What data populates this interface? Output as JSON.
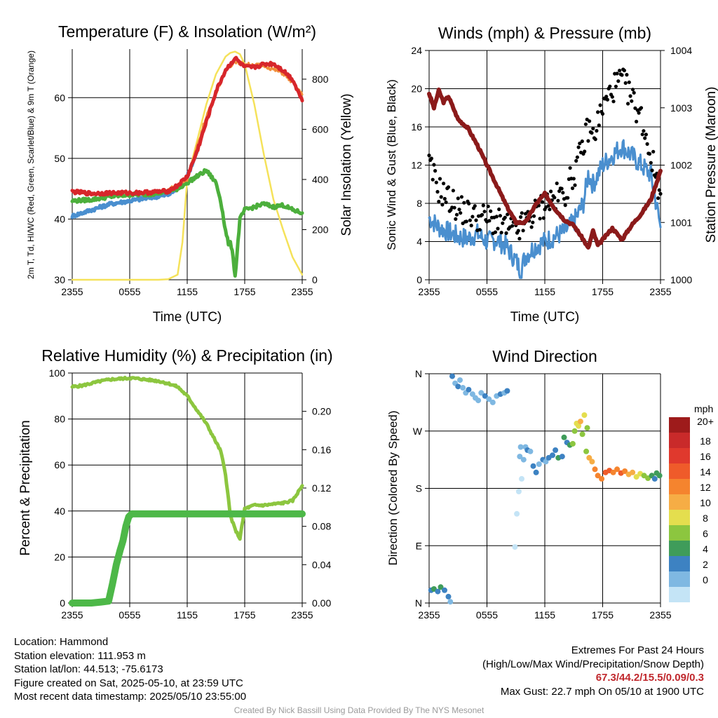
{
  "chart_data": [
    {
      "type": "line",
      "title": "Temperature (F) & Insolation (W/m²)",
      "xlabel": "Time (UTC)",
      "ylabel_left": "2m T, Td, HI/WC (Red, Green, Scarlet/Blue) & 9m T (Orange)",
      "ylabel_right": "Solar Insolation (Yellow)",
      "x_ticks": [
        "2355",
        "0555",
        "1155",
        "1755",
        "2355"
      ],
      "ylim": [
        30,
        68
      ],
      "y2lim": [
        0,
        920
      ],
      "y_ticks": [
        30,
        40,
        50,
        60
      ],
      "y2_ticks": [
        0,
        200,
        400,
        600,
        800
      ],
      "series": [
        {
          "name": "2m T",
          "color": "#d7262b",
          "x": [
            0,
            2,
            4,
            6,
            8,
            10,
            11,
            12,
            13,
            14,
            15,
            16,
            17,
            18,
            19,
            20,
            21,
            22,
            23,
            24
          ],
          "values": [
            44.5,
            44.2,
            44.3,
            44.3,
            44.4,
            44.6,
            45.5,
            47,
            51,
            56,
            61,
            64.5,
            66.5,
            65,
            65,
            65.5,
            65.6,
            64.5,
            63,
            59.5
          ]
        },
        {
          "name": "Td",
          "color": "#4caf3c",
          "x": [
            0,
            2,
            4,
            6,
            8,
            10,
            11,
            12,
            13,
            14,
            14.5,
            15,
            15.5,
            16,
            16.3,
            16.5,
            16.7,
            17,
            17.5,
            18,
            19,
            20,
            21,
            22,
            23,
            24
          ],
          "values": [
            43,
            43.2,
            43.7,
            44,
            44.1,
            44.5,
            45,
            46,
            47,
            48,
            47,
            46,
            43,
            38,
            36,
            36,
            35,
            30.5,
            40,
            41.5,
            42,
            42.5,
            42,
            42.3,
            41.5,
            41
          ]
        },
        {
          "name": "HI/WC",
          "color": "#4a8fcf",
          "x": [
            0,
            2,
            4,
            6,
            8,
            10,
            11,
            12,
            13
          ],
          "values": [
            40.5,
            41.5,
            42.5,
            43,
            43.5,
            44,
            45,
            47,
            51
          ]
        },
        {
          "name": "9m T",
          "color": "#f18e3a",
          "x": [
            10,
            12,
            14,
            16,
            17,
            18,
            20,
            22,
            23,
            24
          ],
          "values": [
            44.8,
            46.5,
            57,
            64.5,
            66,
            65.5,
            65.3,
            64,
            62.5,
            60.5
          ]
        },
        {
          "name": "Solar Insolation",
          "color": "#f5e25a",
          "x": [
            0,
            2,
            4,
            6,
            8,
            9,
            10,
            11,
            11.5,
            12,
            13,
            14,
            15,
            16,
            16.5,
            17,
            17.5,
            18,
            19,
            20,
            21,
            22,
            23,
            24
          ],
          "values": [
            0,
            0,
            0,
            0,
            0,
            0,
            2,
            20,
            150,
            400,
            550,
            700,
            820,
            890,
            905,
            910,
            900,
            860,
            700,
            500,
            320,
            200,
            90,
            20
          ]
        }
      ]
    },
    {
      "type": "line",
      "title": "Winds (mph) & Pressure (mb)",
      "xlabel": "Time (UTC)",
      "ylabel_left": "Sonic Wind & Gust (Blue, Black)",
      "ylabel_right": "Station Pressure (Maroon)",
      "x_ticks": [
        "2355",
        "0555",
        "1155",
        "1755",
        "2355"
      ],
      "ylim": [
        0,
        24
      ],
      "y2lim": [
        1000,
        1004
      ],
      "y_ticks": [
        0,
        4,
        8,
        12,
        16,
        20,
        24
      ],
      "y2_ticks": [
        1000,
        1001,
        1002,
        1003,
        1004
      ],
      "series": [
        {
          "name": "Sonic Wind",
          "color": "#4a8fcf",
          "x": [
            0,
            1,
            2,
            3,
            4,
            5,
            6,
            7,
            8,
            9,
            9.5,
            10,
            11,
            12,
            13,
            14,
            15,
            16,
            16.5,
            17,
            18,
            19,
            20,
            21,
            22,
            23,
            24
          ],
          "values": [
            6.5,
            5.5,
            5,
            4.5,
            4.3,
            4.8,
            4,
            4.2,
            3.5,
            2,
            1,
            2.5,
            3.5,
            4,
            4.5,
            5,
            6,
            8,
            11,
            10,
            12,
            13,
            14,
            13,
            12,
            11,
            5.5
          ]
        },
        {
          "name": "Gust",
          "color": "#000000",
          "x": [
            0,
            1,
            2,
            3,
            4,
            5,
            6,
            7,
            8,
            9,
            10,
            11,
            12,
            13,
            14,
            15,
            16,
            16.5,
            17,
            18,
            19,
            20,
            21,
            22,
            23,
            24
          ],
          "values": [
            12,
            9.5,
            8.5,
            7.5,
            7,
            6.5,
            6.5,
            6,
            5.5,
            5,
            6,
            7,
            8,
            8.5,
            9,
            11,
            14,
            16,
            15,
            18,
            20,
            21,
            19,
            17,
            13,
            9
          ]
        },
        {
          "name": "Station Pressure",
          "color": "#8b1a1a",
          "x": [
            0,
            0.5,
            1,
            1.5,
            2,
            3,
            4,
            5,
            6,
            7,
            8,
            9,
            10,
            11,
            12,
            13,
            14,
            15,
            16,
            16.5,
            17,
            17.5,
            18,
            19,
            20,
            21,
            22,
            23,
            24
          ],
          "values": [
            1003.25,
            1003.0,
            1003.3,
            1003.1,
            1003.2,
            1002.8,
            1002.65,
            1002.35,
            1002.0,
            1001.65,
            1001.3,
            1001.0,
            1001.0,
            1001.3,
            1001.5,
            1001.25,
            1001.05,
            1000.95,
            1000.7,
            1000.55,
            1000.85,
            1000.6,
            1000.7,
            1000.9,
            1000.7,
            1000.95,
            1001.15,
            1001.4,
            1001.9
          ]
        }
      ]
    },
    {
      "type": "line",
      "title": "Relative Humidity (%) & Precipitation (in)",
      "ylabel_left": "Percent & Precipitation",
      "x_ticks": [
        "2355",
        "0555",
        "1155",
        "1755",
        "2355"
      ],
      "ylim": [
        0,
        100
      ],
      "y2lim": [
        0,
        0.24
      ],
      "y_ticks": [
        0,
        20,
        40,
        60,
        80,
        100
      ],
      "y2_ticks": [
        "0.00",
        "0.04",
        "0.08",
        "0.12",
        "0.16",
        "0.20"
      ],
      "series": [
        {
          "name": "Relative Humidity",
          "color": "#8cc63f",
          "x": [
            0,
            1,
            2,
            3,
            4,
            5,
            6,
            7,
            8,
            9,
            10,
            11,
            12,
            13,
            14,
            15,
            15.5,
            16,
            16.5,
            17,
            17.5,
            18,
            19,
            20,
            21,
            22,
            23,
            24
          ],
          "values": [
            94,
            94.5,
            95.5,
            96.5,
            97.2,
            97.5,
            97.8,
            97.5,
            97,
            96.5,
            95.5,
            94,
            90,
            84,
            78,
            70,
            66,
            56,
            38,
            32,
            28,
            41,
            42.5,
            42.5,
            43,
            43.5,
            44.5,
            51
          ]
        },
        {
          "name": "Precipitation",
          "color": "#4db848",
          "x": [
            0,
            1,
            2,
            3,
            3.8,
            4.2,
            4.6,
            5,
            5.3,
            5.6,
            5.9,
            6.2,
            7,
            8,
            24
          ],
          "values": [
            0,
            0,
            0,
            0.001,
            0.002,
            0.02,
            0.04,
            0.055,
            0.065,
            0.08,
            0.09,
            0.093,
            0.093,
            0.093,
            0.093
          ]
        }
      ]
    },
    {
      "type": "scatter",
      "title": "Wind Direction",
      "ylabel": "Direction (Colored By Speed)",
      "x_ticks": [
        "2355",
        "0555",
        "1155",
        "1755",
        "2355"
      ],
      "y_ticks": [
        "N",
        "E",
        "S",
        "W",
        "N"
      ],
      "ylim": [
        0,
        360
      ],
      "colorbar_title": "mph",
      "colorbar_labels": [
        "20+",
        "18",
        "16",
        "14",
        "12",
        "10",
        "8",
        "6",
        "4",
        "2",
        "0"
      ],
      "colorbar_colors": [
        "#9e1b1b",
        "#c92a2a",
        "#e0392d",
        "#ef5b2a",
        "#f5842e",
        "#f6ad45",
        "#e4de4e",
        "#8cc63f",
        "#3f9c5a",
        "#3d82c2",
        "#7fb8e2",
        "#c4e4f6"
      ],
      "points": [
        {
          "x": 0.2,
          "y": 20,
          "speed": 5
        },
        {
          "x": 0.5,
          "y": 22,
          "speed": 6
        },
        {
          "x": 0.9,
          "y": 18,
          "speed": 5
        },
        {
          "x": 1.2,
          "y": 25,
          "speed": 6
        },
        {
          "x": 1.6,
          "y": 20,
          "speed": 5
        },
        {
          "x": 2.0,
          "y": 10,
          "speed": 4
        },
        {
          "x": 2.2,
          "y": 2,
          "speed": 3
        },
        {
          "x": 2.4,
          "y": 356,
          "speed": 4
        },
        {
          "x": 2.7,
          "y": 345,
          "speed": 3
        },
        {
          "x": 3.0,
          "y": 340,
          "speed": 4
        },
        {
          "x": 3.2,
          "y": 350,
          "speed": 3
        },
        {
          "x": 3.5,
          "y": 338,
          "speed": 2
        },
        {
          "x": 3.8,
          "y": 330,
          "speed": 3
        },
        {
          "x": 4.1,
          "y": 335,
          "speed": 4
        },
        {
          "x": 4.5,
          "y": 328,
          "speed": 3
        },
        {
          "x": 4.8,
          "y": 322,
          "speed": 2
        },
        {
          "x": 5.1,
          "y": 318,
          "speed": 2
        },
        {
          "x": 5.4,
          "y": 330,
          "speed": 3
        },
        {
          "x": 5.8,
          "y": 325,
          "speed": 4
        },
        {
          "x": 6.2,
          "y": 320,
          "speed": 2
        },
        {
          "x": 6.6,
          "y": 315,
          "speed": 2
        },
        {
          "x": 7.0,
          "y": 325,
          "speed": 3
        },
        {
          "x": 7.4,
          "y": 328,
          "speed": 4
        },
        {
          "x": 7.8,
          "y": 330,
          "speed": 3
        },
        {
          "x": 8.1,
          "y": 333,
          "speed": 4
        },
        {
          "x": 8.9,
          "y": 88,
          "speed": 1
        },
        {
          "x": 9.1,
          "y": 140,
          "speed": 1
        },
        {
          "x": 9.3,
          "y": 175,
          "speed": 1
        },
        {
          "x": 9.6,
          "y": 195,
          "speed": 1
        },
        {
          "x": 9.4,
          "y": 230,
          "speed": 3
        },
        {
          "x": 9.5,
          "y": 245,
          "speed": 2
        },
        {
          "x": 9.8,
          "y": 225,
          "speed": 2
        },
        {
          "x": 10.0,
          "y": 245,
          "speed": 3
        },
        {
          "x": 10.2,
          "y": 240,
          "speed": 4
        },
        {
          "x": 10.5,
          "y": 238,
          "speed": 3
        },
        {
          "x": 10.8,
          "y": 215,
          "speed": 4
        },
        {
          "x": 11.1,
          "y": 205,
          "speed": 4
        },
        {
          "x": 11.4,
          "y": 218,
          "speed": 3
        },
        {
          "x": 11.8,
          "y": 225,
          "speed": 4
        },
        {
          "x": 12.1,
          "y": 222,
          "speed": 3
        },
        {
          "x": 12.4,
          "y": 228,
          "speed": 5
        },
        {
          "x": 12.8,
          "y": 232,
          "speed": 4
        },
        {
          "x": 13.1,
          "y": 240,
          "speed": 4
        },
        {
          "x": 13.4,
          "y": 228,
          "speed": 6
        },
        {
          "x": 13.8,
          "y": 230,
          "speed": 5
        },
        {
          "x": 14.0,
          "y": 260,
          "speed": 6
        },
        {
          "x": 14.3,
          "y": 252,
          "speed": 5
        },
        {
          "x": 14.6,
          "y": 248,
          "speed": 7
        },
        {
          "x": 14.9,
          "y": 250,
          "speed": 8
        },
        {
          "x": 15.1,
          "y": 270,
          "speed": 8
        },
        {
          "x": 15.3,
          "y": 282,
          "speed": 10
        },
        {
          "x": 15.5,
          "y": 278,
          "speed": 11
        },
        {
          "x": 15.7,
          "y": 285,
          "speed": 12
        },
        {
          "x": 15.9,
          "y": 265,
          "speed": 9
        },
        {
          "x": 16.1,
          "y": 295,
          "speed": 10
        },
        {
          "x": 16.4,
          "y": 275,
          "speed": 8
        },
        {
          "x": 16.3,
          "y": 238,
          "speed": 9
        },
        {
          "x": 16.6,
          "y": 228,
          "speed": 12
        },
        {
          "x": 16.9,
          "y": 222,
          "speed": 13
        },
        {
          "x": 17.2,
          "y": 210,
          "speed": 15
        },
        {
          "x": 17.5,
          "y": 200,
          "speed": 14
        },
        {
          "x": 17.9,
          "y": 195,
          "speed": 15
        },
        {
          "x": 18.3,
          "y": 205,
          "speed": 16
        },
        {
          "x": 18.7,
          "y": 208,
          "speed": 17
        },
        {
          "x": 19.1,
          "y": 205,
          "speed": 15
        },
        {
          "x": 19.5,
          "y": 210,
          "speed": 14
        },
        {
          "x": 19.9,
          "y": 204,
          "speed": 16
        },
        {
          "x": 20.3,
          "y": 207,
          "speed": 15
        },
        {
          "x": 20.7,
          "y": 202,
          "speed": 13
        },
        {
          "x": 21.1,
          "y": 205,
          "speed": 12
        },
        {
          "x": 21.5,
          "y": 198,
          "speed": 11
        },
        {
          "x": 21.9,
          "y": 203,
          "speed": 10
        },
        {
          "x": 22.3,
          "y": 200,
          "speed": 9
        },
        {
          "x": 22.7,
          "y": 196,
          "speed": 8
        },
        {
          "x": 23.1,
          "y": 200,
          "speed": 6
        },
        {
          "x": 23.4,
          "y": 195,
          "speed": 5
        },
        {
          "x": 23.6,
          "y": 204,
          "speed": 7
        },
        {
          "x": 23.9,
          "y": 200,
          "speed": 6
        }
      ]
    }
  ],
  "footer": {
    "location": "Location: Hammond",
    "elevation": "Station elevation: 111.953 m",
    "latlon": "Station lat/lon: 44.513; -75.6173",
    "created": "Figure created on Sat, 2025-05-10, at 23:59 UTC",
    "recent": "Most recent data timestamp: 2025/05/10 23:55:00",
    "extremes_title": "Extremes For Past 24 Hours",
    "extremes_sub": "(High/Low/Max Wind/Precipitation/Snow Depth)",
    "extremes_values": "67.3/44.2/15.5/0.09/0.3",
    "max_gust": "Max Gust: 22.7 mph On 05/10 at 1900 UTC",
    "credit": "Created By Nick Bassill Using Data Provided By The NYS Mesonet"
  }
}
